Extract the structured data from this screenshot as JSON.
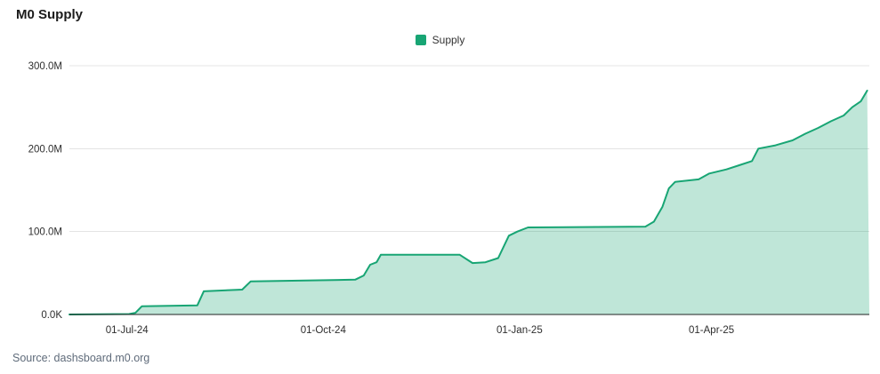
{
  "title": "M0 Supply",
  "source_text": "Source: dashsboard.m0.org",
  "legend": {
    "items": [
      {
        "label": "Supply",
        "color": "#18a574"
      }
    ]
  },
  "chart_data": {
    "type": "area",
    "title": "M0 Supply",
    "xlabel": "",
    "ylabel": "",
    "unit": "tokens",
    "values_in": "millions",
    "ylim_m": [
      0,
      300
    ],
    "grid": true,
    "legend_position": "top-center",
    "x_range": {
      "start": "2024-06-04",
      "end": "2025-06-14"
    },
    "yticks": [
      {
        "label": "0.0K",
        "value_m": 0
      },
      {
        "label": "100.0M",
        "value_m": 100
      },
      {
        "label": "200.0M",
        "value_m": 200
      },
      {
        "label": "300.0M",
        "value_m": 300
      }
    ],
    "xticks": [
      {
        "label": "01-Jul-24",
        "date": "2024-07-01"
      },
      {
        "label": "01-Oct-24",
        "date": "2024-10-01"
      },
      {
        "label": "01-Jan-25",
        "date": "2025-01-01"
      },
      {
        "label": "01-Apr-25",
        "date": "2025-04-01"
      }
    ],
    "series": [
      {
        "name": "Supply",
        "color": "#18a574",
        "fill": "rgba(24,165,116,0.28)",
        "points": [
          [
            "2024-06-04",
            0
          ],
          [
            "2024-07-02",
            0.5
          ],
          [
            "2024-07-05",
            2
          ],
          [
            "2024-07-08",
            10
          ],
          [
            "2024-08-03",
            11
          ],
          [
            "2024-08-06",
            28
          ],
          [
            "2024-08-24",
            30
          ],
          [
            "2024-08-28",
            40
          ],
          [
            "2024-10-16",
            42
          ],
          [
            "2024-10-20",
            47
          ],
          [
            "2024-10-23",
            60
          ],
          [
            "2024-10-26",
            63
          ],
          [
            "2024-10-28",
            72
          ],
          [
            "2024-12-04",
            72
          ],
          [
            "2024-12-10",
            62
          ],
          [
            "2024-12-16",
            63
          ],
          [
            "2024-12-22",
            68
          ],
          [
            "2024-12-27",
            95
          ],
          [
            "2024-12-31",
            100
          ],
          [
            "2025-01-05",
            105
          ],
          [
            "2025-03-01",
            106
          ],
          [
            "2025-03-05",
            112
          ],
          [
            "2025-03-09",
            130
          ],
          [
            "2025-03-12",
            152
          ],
          [
            "2025-03-15",
            160
          ],
          [
            "2025-03-26",
            163
          ],
          [
            "2025-03-31",
            170
          ],
          [
            "2025-04-08",
            175
          ],
          [
            "2025-04-14",
            180
          ],
          [
            "2025-04-20",
            185
          ],
          [
            "2025-04-23",
            200
          ],
          [
            "2025-05-01",
            204
          ],
          [
            "2025-05-09",
            210
          ],
          [
            "2025-05-15",
            218
          ],
          [
            "2025-05-21",
            225
          ],
          [
            "2025-05-27",
            233
          ],
          [
            "2025-06-02",
            240
          ],
          [
            "2025-06-06",
            250
          ],
          [
            "2025-06-10",
            257
          ],
          [
            "2025-06-13",
            270
          ]
        ]
      }
    ]
  }
}
